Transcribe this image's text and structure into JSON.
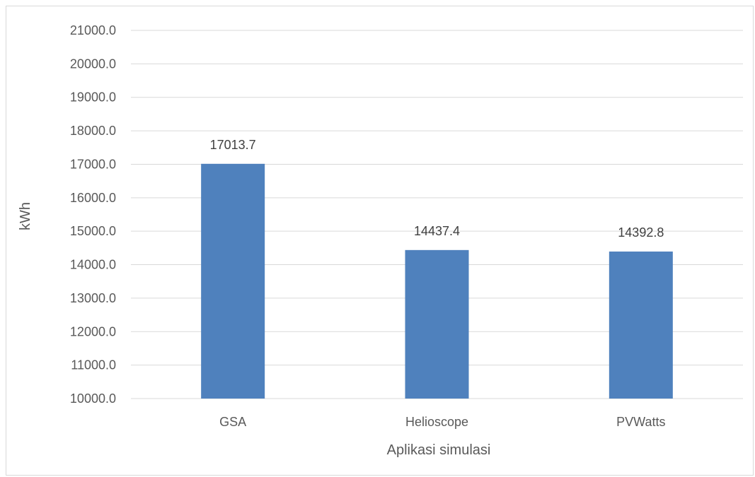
{
  "chart_data": {
    "type": "bar",
    "title": "",
    "xlabel": "Aplikasi simulasi",
    "ylabel": "kWh",
    "categories": [
      "GSA",
      "Helioscope",
      "PVWatts"
    ],
    "values": [
      17013.7,
      14437.4,
      14392.8
    ],
    "value_labels": [
      "17013.7",
      "14437.4",
      "14392.8"
    ],
    "ylim": [
      10000,
      21000
    ],
    "ytick_step": 1000,
    "ytick_labels": [
      "10000.0",
      "11000.0",
      "12000.0",
      "13000.0",
      "14000.0",
      "15000.0",
      "16000.0",
      "17000.0",
      "18000.0",
      "19000.0",
      "20000.0",
      "21000.0"
    ],
    "grid": true,
    "legend": "none",
    "bar_color": "#4F81BD"
  }
}
